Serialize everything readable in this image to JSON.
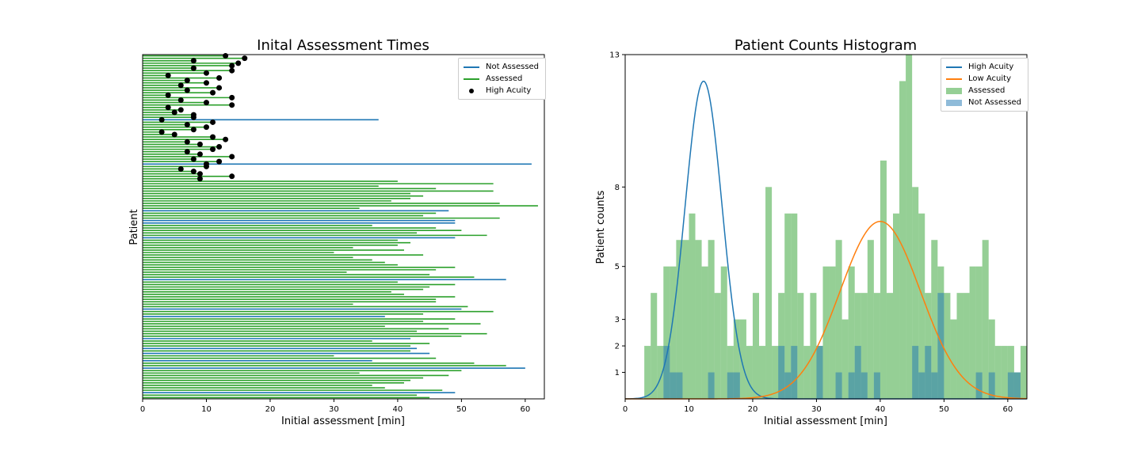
{
  "chart_data": [
    {
      "type": "bar",
      "orientation": "horizontal",
      "title": "Inital Assessment Times",
      "xlabel": "Initial assessment [min]",
      "ylabel": "Patient",
      "xlim": [
        0,
        63
      ],
      "xticks": [
        "0",
        "10",
        "20",
        "30",
        "40",
        "50",
        "60"
      ],
      "legend_position": "top-right",
      "legend": [
        "Not Assessed",
        "Assessed",
        "High Acuity"
      ],
      "colors": {
        "not_assessed": "#1f77b4",
        "assessed": "#2ca02c",
        "high_acuity": "#000000"
      },
      "n_patients": 140,
      "high_acuity_times": [
        13,
        16,
        8,
        15,
        14,
        8,
        14,
        10,
        4,
        12,
        7,
        10,
        6,
        12,
        7,
        11,
        4,
        14,
        6,
        10,
        14,
        4,
        6,
        5,
        8,
        8,
        3,
        11,
        7,
        10,
        8,
        3,
        5,
        11,
        13,
        7,
        9,
        12,
        11,
        7,
        9,
        14,
        8,
        12,
        10,
        10,
        6,
        8,
        9,
        14,
        9
      ],
      "assessed_times": [
        40,
        55,
        37,
        46,
        55,
        42,
        44,
        42,
        39,
        56,
        62,
        34,
        31,
        46,
        44,
        56,
        40,
        45,
        36,
        46,
        50,
        43,
        54,
        32,
        40,
        42,
        40,
        33,
        41,
        30,
        44,
        33,
        36,
        38,
        40,
        49,
        46,
        32,
        45,
        52,
        56,
        40,
        49,
        45,
        44,
        39,
        41,
        49,
        46,
        46,
        33,
        51,
        53,
        55,
        44,
        56,
        49,
        44,
        53,
        38,
        48,
        43,
        54,
        50,
        49,
        36,
        45,
        42,
        52,
        42,
        36,
        30,
        46,
        40,
        52,
        57,
        36,
        50,
        34,
        48,
        44,
        42,
        41,
        36,
        38,
        47,
        50,
        43,
        45,
        38,
        45,
        53,
        36,
        48,
        45,
        36,
        56,
        33,
        31,
        38,
        45,
        46,
        44,
        36,
        49,
        49,
        47,
        43,
        33,
        44,
        60,
        41,
        51,
        54,
        48,
        51,
        60,
        45,
        41,
        33,
        55,
        40,
        37,
        45,
        30,
        40,
        37,
        47,
        33,
        55,
        52,
        62,
        44,
        42,
        38,
        45,
        33,
        48,
        31,
        26
      ],
      "not_assessed_rows": {
        "patient": [
          26,
          44,
          63,
          67,
          68,
          74,
          91,
          103,
          106,
          115,
          119,
          121,
          124,
          127,
          137
        ],
        "time": [
          37,
          61,
          48,
          49,
          49,
          49,
          57,
          50,
          38,
          42,
          43,
          45,
          36,
          60,
          49
        ]
      }
    },
    {
      "type": "histogram",
      "title": "Patient Counts Histogram",
      "xlabel": "Initial assessment [min]",
      "ylabel": "Patient counts",
      "xlim": [
        0,
        63
      ],
      "ylim": [
        0,
        13
      ],
      "xticks": [
        "0",
        "10",
        "20",
        "30",
        "40",
        "50",
        "60"
      ],
      "yticks": [
        "1",
        "2",
        "3",
        "5",
        "8",
        "13"
      ],
      "legend_position": "top-right",
      "legend": [
        "High Acuity",
        "Low Acuity",
        "Assessed",
        "Not Assessed"
      ],
      "colors": {
        "high_acuity": "#1f77b4",
        "low_acuity": "#ff7f0e",
        "assessed": "#2ca02c",
        "not_assessed": "#1f77b4"
      },
      "bin_starts": [
        3,
        4,
        5,
        6,
        7,
        8,
        9,
        10,
        11,
        12,
        13,
        14,
        15,
        16,
        17,
        18,
        19,
        20,
        21,
        22,
        23,
        24,
        25,
        26,
        27,
        28,
        29,
        30,
        31,
        32,
        33,
        34,
        35,
        36,
        37,
        38,
        39,
        40,
        41,
        42,
        43,
        44,
        45,
        46,
        47,
        48,
        49,
        50,
        51,
        52,
        53,
        54,
        55,
        56,
        57,
        58,
        59,
        60,
        61,
        62
      ],
      "assessed_counts": [
        2,
        4,
        2,
        5,
        5,
        6,
        6,
        7,
        6,
        5,
        6,
        4,
        5,
        2,
        3,
        3,
        2,
        4,
        2,
        8,
        2,
        4,
        7,
        7,
        4,
        2,
        4,
        2,
        5,
        5,
        6,
        3,
        5,
        4,
        4,
        6,
        4,
        9,
        4,
        7,
        12,
        13,
        8,
        7,
        4,
        6,
        5,
        4,
        3,
        4,
        4,
        5,
        5,
        6,
        3,
        2,
        2,
        2,
        1,
        2
      ],
      "not_assessed_counts": [
        0,
        0,
        0,
        2,
        1,
        1,
        0,
        0,
        0,
        0,
        1,
        0,
        0,
        1,
        1,
        0,
        0,
        0,
        0,
        0,
        0,
        2,
        1,
        2,
        0,
        0,
        0,
        2,
        0,
        0,
        1,
        0,
        1,
        2,
        1,
        0,
        1,
        0,
        0,
        0,
        0,
        0,
        2,
        1,
        2,
        1,
        4,
        0,
        0,
        0,
        0,
        0,
        1,
        0,
        1,
        0,
        0,
        1,
        1,
        0
      ],
      "high_acuity_curve": {
        "mean": 12.3,
        "sd": 2.9,
        "peak": 12.0
      },
      "low_acuity_curve": {
        "mean": 40.0,
        "sd": 6.3,
        "peak": 6.7
      }
    }
  ]
}
